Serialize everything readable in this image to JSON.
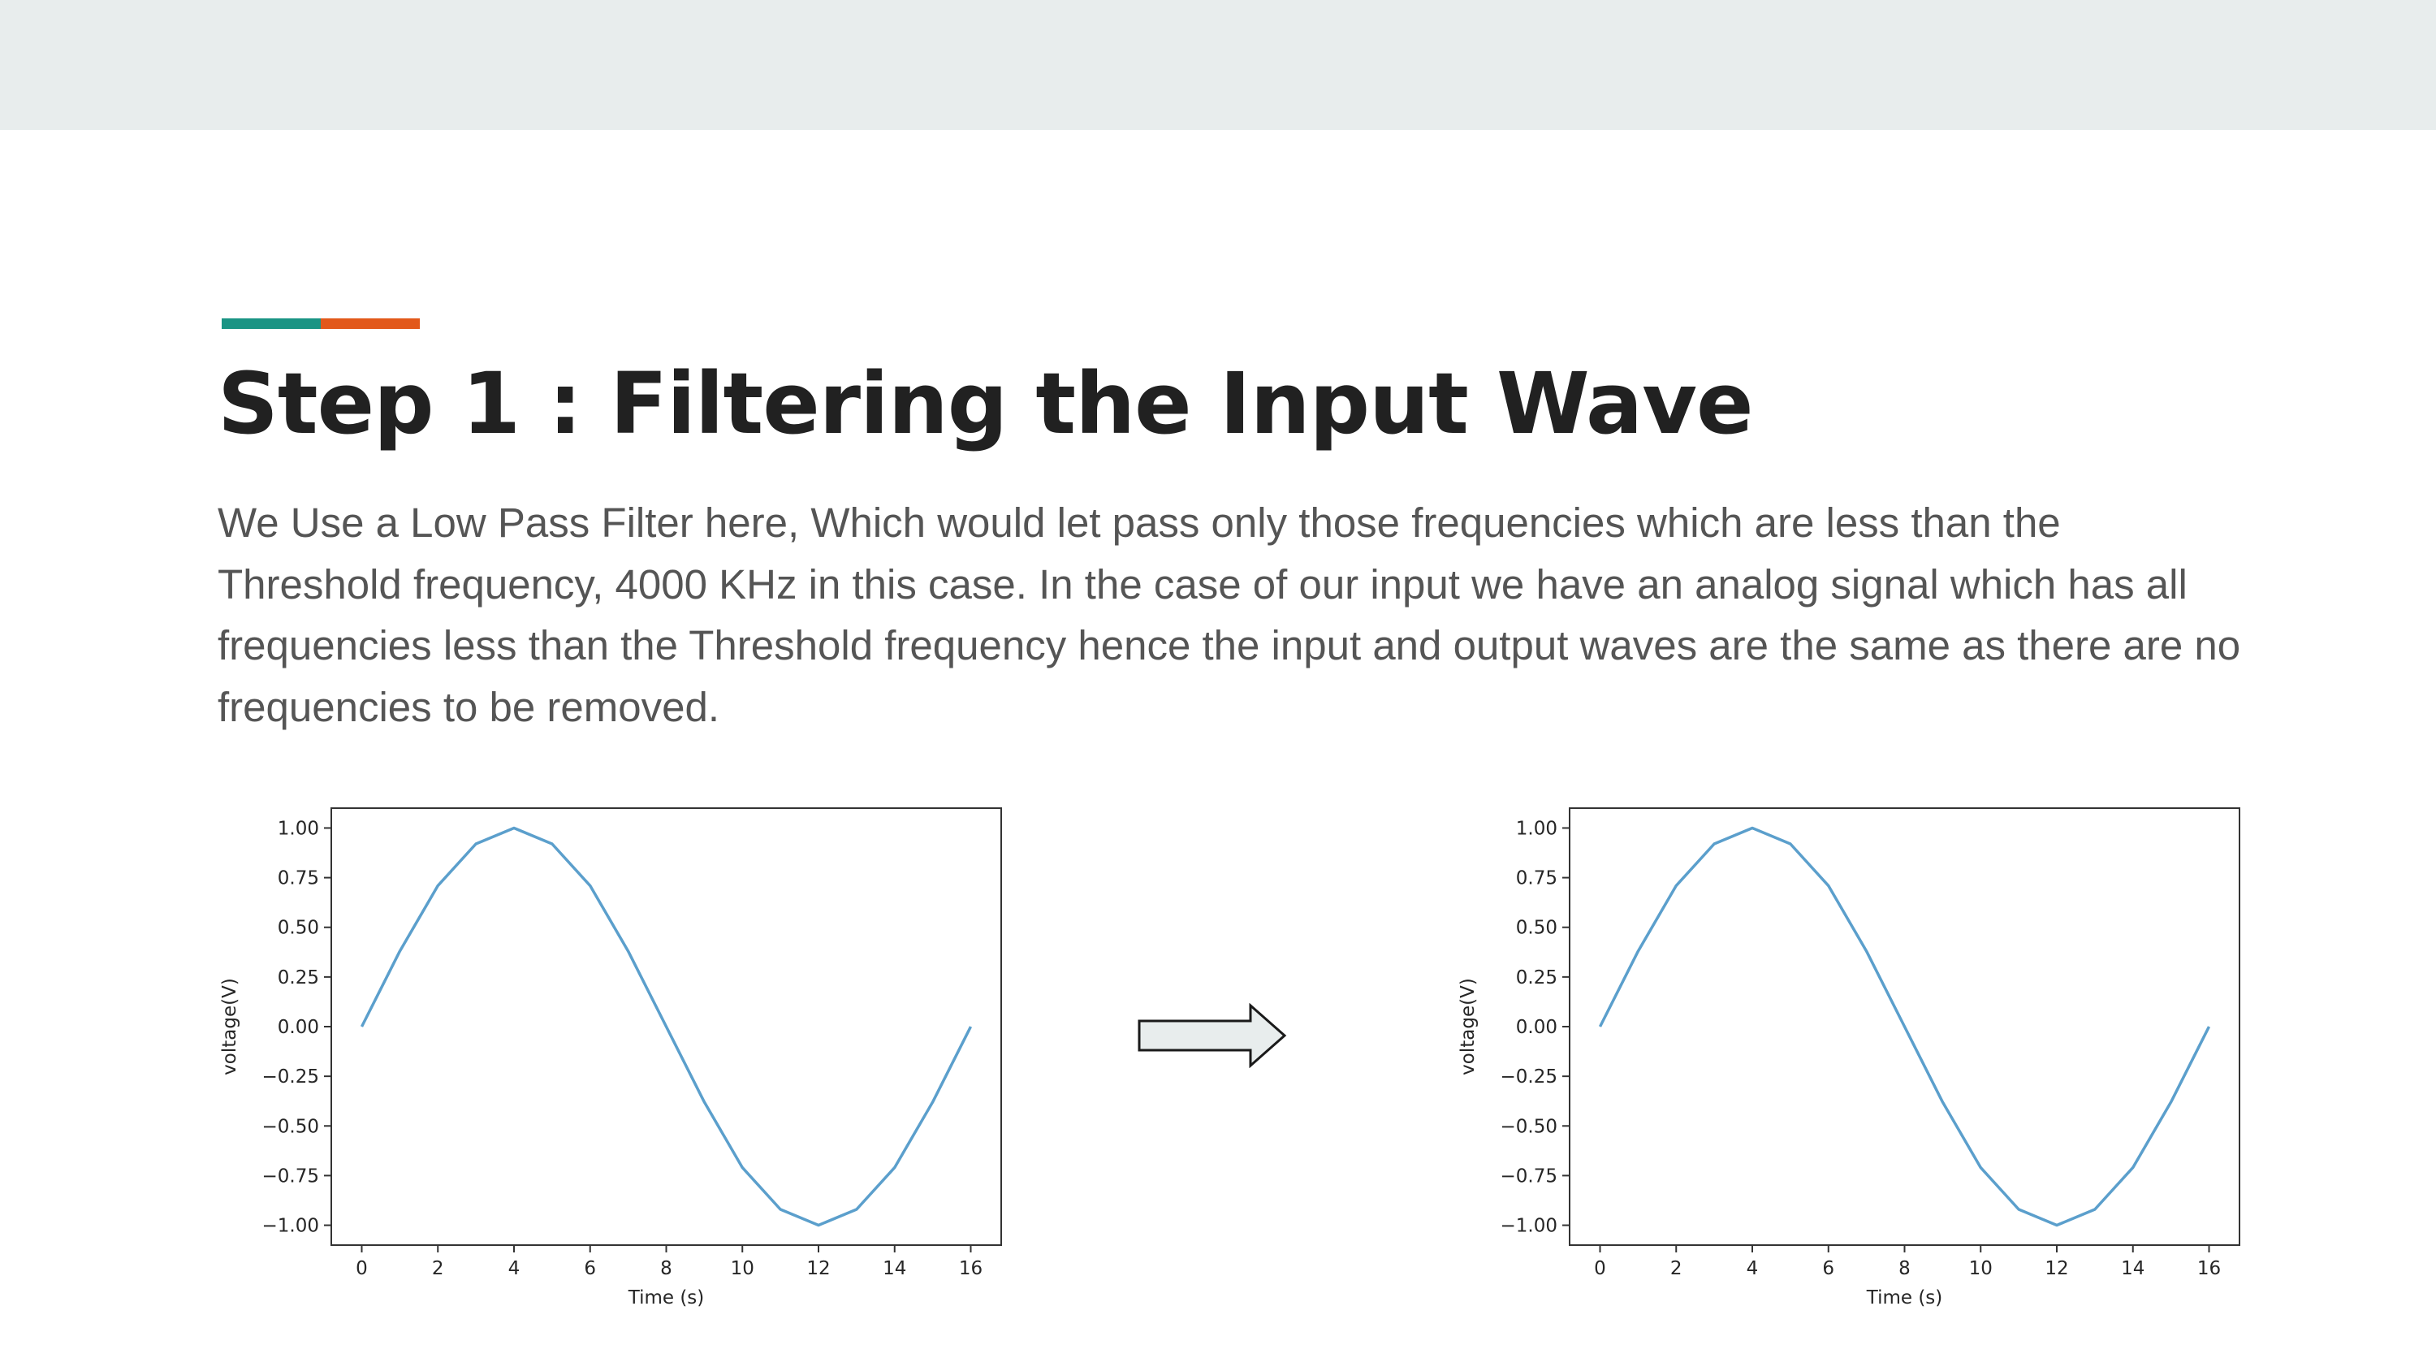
{
  "slide": {
    "title": "Step 1 : Filtering the Input Wave",
    "body": "We Use a Low Pass Filter here, Which would let pass only those frequencies which are less than the Threshold frequency, 4000 KHz in this case. In the case of our input we have an analog signal which has all frequencies less than the Threshold frequency hence the input and output waves are the same as there are no frequencies to be removed.",
    "colors": {
      "band": "#e8eded",
      "accent_teal": "#1a9484",
      "accent_orange": "#e2581a",
      "line": "#5b9fcc"
    },
    "arrow_icon": "right-arrow-icon"
  },
  "chart_data": [
    {
      "type": "line",
      "xlabel": "Time (s)",
      "ylabel": "voltage(V)",
      "xlim": [
        -0.8,
        16.8
      ],
      "ylim": [
        -1.1,
        1.1
      ],
      "xticks": [
        0,
        2,
        4,
        6,
        8,
        10,
        12,
        14,
        16
      ],
      "yticks": [
        1.0,
        0.75,
        0.5,
        0.25,
        0.0,
        -0.25,
        -0.5,
        -0.75,
        -1.0
      ],
      "ytick_labels": [
        "1.00",
        "0.75",
        "0.50",
        "0.25",
        "0.00",
        "−0.25",
        "−0.50",
        "−0.75",
        "−1.00"
      ],
      "grid": false,
      "series": [
        {
          "x": [
            0,
            1,
            2,
            3,
            4,
            5,
            6,
            7,
            8,
            9,
            10,
            11,
            12,
            13,
            14,
            15,
            16
          ],
          "y": [
            0,
            0.38,
            0.71,
            0.92,
            1.0,
            0.92,
            0.71,
            0.38,
            0,
            -0.38,
            -0.71,
            -0.92,
            -1.0,
            -0.92,
            -0.71,
            -0.38,
            0
          ]
        }
      ]
    },
    {
      "type": "line",
      "xlabel": "Time (s)",
      "ylabel": "voltage(V)",
      "xlim": [
        -0.8,
        16.8
      ],
      "ylim": [
        -1.1,
        1.1
      ],
      "xticks": [
        0,
        2,
        4,
        6,
        8,
        10,
        12,
        14,
        16
      ],
      "yticks": [
        1.0,
        0.75,
        0.5,
        0.25,
        0.0,
        -0.25,
        -0.5,
        -0.75,
        -1.0
      ],
      "ytick_labels": [
        "1.00",
        "0.75",
        "0.50",
        "0.25",
        "0.00",
        "−0.25",
        "−0.50",
        "−0.75",
        "−1.00"
      ],
      "grid": false,
      "series": [
        {
          "x": [
            0,
            1,
            2,
            3,
            4,
            5,
            6,
            7,
            8,
            9,
            10,
            11,
            12,
            13,
            14,
            15,
            16
          ],
          "y": [
            0,
            0.38,
            0.71,
            0.92,
            1.0,
            0.92,
            0.71,
            0.38,
            0,
            -0.38,
            -0.71,
            -0.92,
            -1.0,
            -0.92,
            -0.71,
            -0.38,
            0
          ]
        }
      ]
    }
  ]
}
